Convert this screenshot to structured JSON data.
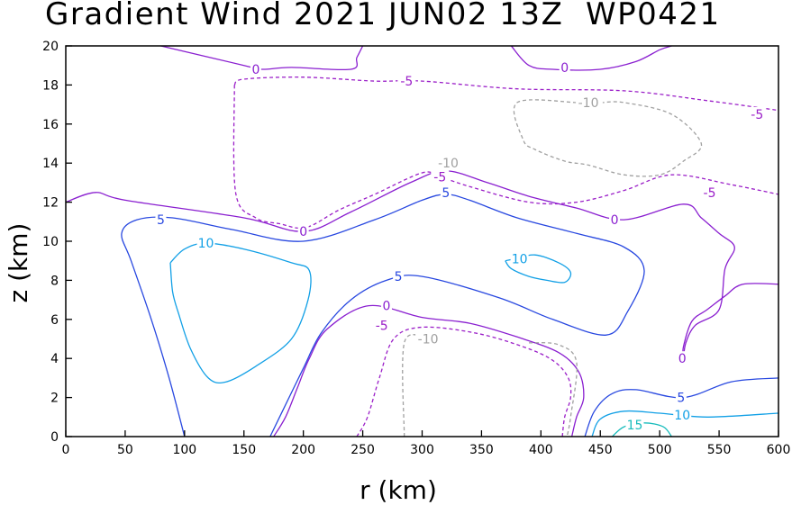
{
  "chart_data": {
    "type": "contour",
    "title": "Gradient Wind 2021 JUN02 13Z  WP0421",
    "xlabel": "r (km)",
    "ylabel": "z (km)",
    "xlim": [
      0,
      600
    ],
    "ylim": [
      0,
      20
    ],
    "xticks": [
      "0",
      "50",
      "100",
      "150",
      "200",
      "250",
      "300",
      "350",
      "400",
      "450",
      "500",
      "550",
      "600"
    ],
    "yticks": [
      "0",
      "2",
      "4",
      "6",
      "8",
      "10",
      "12",
      "14",
      "16",
      "18",
      "20"
    ],
    "contour_labels": [
      {
        "text": "0",
        "x": 160,
        "y": 18.8,
        "level": 0
      },
      {
        "text": "0",
        "x": 420,
        "y": 18.9,
        "level": 0
      },
      {
        "text": "-5",
        "x": 287,
        "y": 18.2,
        "level": -5
      },
      {
        "text": "-5",
        "x": 582,
        "y": 16.5,
        "level": -5
      },
      {
        "text": "-10",
        "x": 440,
        "y": 17.1,
        "level": -10
      },
      {
        "text": "-10",
        "x": 322,
        "y": 14.0,
        "level": -10
      },
      {
        "text": "-5",
        "x": 315,
        "y": 13.3,
        "level": -5
      },
      {
        "text": "-5",
        "x": 542,
        "y": 12.5,
        "level": -5
      },
      {
        "text": "5",
        "x": 320,
        "y": 12.5,
        "level": 5
      },
      {
        "text": "0",
        "x": 200,
        "y": 10.5,
        "level": 0
      },
      {
        "text": "0",
        "x": 462,
        "y": 11.1,
        "level": 0
      },
      {
        "text": "5",
        "x": 80,
        "y": 11.1,
        "level": 5
      },
      {
        "text": "10",
        "x": 118,
        "y": 9.9,
        "level": 10
      },
      {
        "text": "10",
        "x": 382,
        "y": 9.1,
        "level": 10
      },
      {
        "text": "5",
        "x": 280,
        "y": 8.2,
        "level": 5
      },
      {
        "text": "0",
        "x": 270,
        "y": 6.7,
        "level": 0
      },
      {
        "text": "-5",
        "x": 266,
        "y": 5.7,
        "level": -5
      },
      {
        "text": "-10",
        "x": 305,
        "y": 5.0,
        "level": -10
      },
      {
        "text": "0",
        "x": 519,
        "y": 4.0,
        "level": 0
      },
      {
        "text": "5",
        "x": 518,
        "y": 2.0,
        "level": 5
      },
      {
        "text": "10",
        "x": 519,
        "y": 1.1,
        "level": 10
      },
      {
        "text": "15",
        "x": 479,
        "y": 0.6,
        "level": 15
      }
    ],
    "level_colors": {
      "-10": "#a0a0a0",
      "-5": "#9b1fc8",
      "0": "#8a1fd0",
      "5": "#2848e0",
      "10": "#12a0e6",
      "15": "#18bcbc"
    },
    "negative_dashed": true,
    "grid": false
  }
}
